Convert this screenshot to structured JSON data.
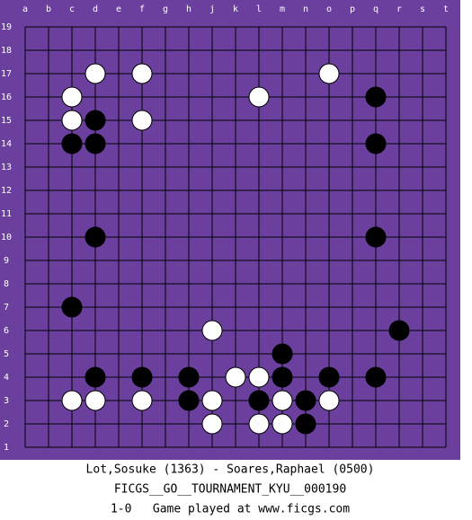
{
  "board": {
    "columns": [
      "a",
      "b",
      "c",
      "d",
      "e",
      "f",
      "g",
      "h",
      "j",
      "k",
      "l",
      "m",
      "n",
      "o",
      "p",
      "q",
      "r",
      "s",
      "t"
    ],
    "rows": [
      19,
      18,
      17,
      16,
      15,
      14,
      13,
      12,
      11,
      10,
      9,
      8,
      7,
      6,
      5,
      4,
      3,
      2,
      1
    ],
    "stones": [
      {
        "col": "d",
        "row": 17,
        "color": "white"
      },
      {
        "col": "f",
        "row": 17,
        "color": "white"
      },
      {
        "col": "o",
        "row": 17,
        "color": "white"
      },
      {
        "col": "c",
        "row": 16,
        "color": "white"
      },
      {
        "col": "l",
        "row": 16,
        "color": "white"
      },
      {
        "col": "q",
        "row": 16,
        "color": "black"
      },
      {
        "col": "c",
        "row": 15,
        "color": "white"
      },
      {
        "col": "d",
        "row": 15,
        "color": "black"
      },
      {
        "col": "f",
        "row": 15,
        "color": "white"
      },
      {
        "col": "c",
        "row": 14,
        "color": "black"
      },
      {
        "col": "d",
        "row": 14,
        "color": "black"
      },
      {
        "col": "q",
        "row": 14,
        "color": "black"
      },
      {
        "col": "d",
        "row": 10,
        "color": "black"
      },
      {
        "col": "q",
        "row": 10,
        "color": "black"
      },
      {
        "col": "c",
        "row": 7,
        "color": "black"
      },
      {
        "col": "j",
        "row": 6,
        "color": "white"
      },
      {
        "col": "r",
        "row": 6,
        "color": "black"
      },
      {
        "col": "m",
        "row": 5,
        "color": "black"
      },
      {
        "col": "d",
        "row": 4,
        "color": "black"
      },
      {
        "col": "f",
        "row": 4,
        "color": "black"
      },
      {
        "col": "h",
        "row": 4,
        "color": "black"
      },
      {
        "col": "k",
        "row": 4,
        "color": "white"
      },
      {
        "col": "l",
        "row": 4,
        "color": "white"
      },
      {
        "col": "m",
        "row": 4,
        "color": "black"
      },
      {
        "col": "o",
        "row": 4,
        "color": "black"
      },
      {
        "col": "q",
        "row": 4,
        "color": "black"
      },
      {
        "col": "c",
        "row": 3,
        "color": "white"
      },
      {
        "col": "d",
        "row": 3,
        "color": "white"
      },
      {
        "col": "f",
        "row": 3,
        "color": "white"
      },
      {
        "col": "h",
        "row": 3,
        "color": "black"
      },
      {
        "col": "j",
        "row": 3,
        "color": "white"
      },
      {
        "col": "l",
        "row": 3,
        "color": "black"
      },
      {
        "col": "m",
        "row": 3,
        "color": "white"
      },
      {
        "col": "n",
        "row": 3,
        "color": "black"
      },
      {
        "col": "o",
        "row": 3,
        "color": "white"
      },
      {
        "col": "j",
        "row": 2,
        "color": "white"
      },
      {
        "col": "l",
        "row": 2,
        "color": "white"
      },
      {
        "col": "m",
        "row": 2,
        "color": "white"
      },
      {
        "col": "n",
        "row": 2,
        "color": "black"
      }
    ]
  },
  "footer": {
    "players": "Lot,Sosuke (1363) - Soares,Raphael (0500)",
    "event": "FICGS__GO__TOURNAMENT_KYU__000190",
    "result": "1-0   Game played at www.ficgs.com"
  }
}
